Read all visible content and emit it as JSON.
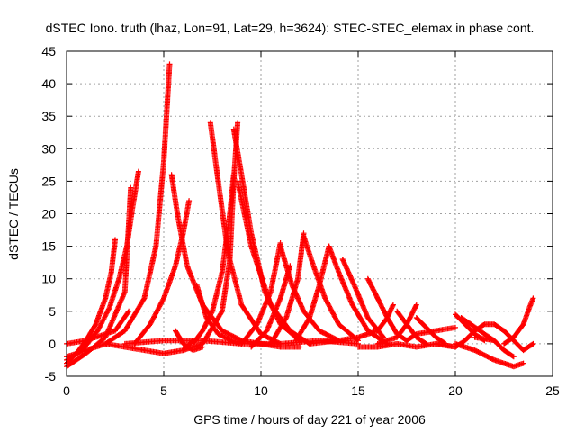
{
  "chart_data": {
    "type": "scatter",
    "title": "dSTEC Iono. truth (lhaz, Lon=91, Lat=29, h=3624): STEC-STEC_elemax in phase cont.",
    "xlabel": "GPS time / hours of day 221 of year 2006",
    "ylabel": "dSTEC  / TECUs",
    "xlim": [
      0,
      25
    ],
    "ylim": [
      -5,
      45
    ],
    "xticks": [
      0,
      5,
      10,
      15,
      20,
      25
    ],
    "yticks": [
      -5,
      0,
      5,
      10,
      15,
      20,
      25,
      30,
      35,
      40,
      45
    ],
    "grid": true,
    "legend": "none",
    "marker": "plus",
    "color": "#ff0000",
    "series": [
      {
        "x": [
          0.0,
          0.5,
          1.0,
          1.5,
          2.0,
          2.3,
          2.5
        ],
        "y": [
          -3.0,
          -1.5,
          0.5,
          3.0,
          7.0,
          11.0,
          16.0
        ]
      },
      {
        "x": [
          0.0,
          0.8,
          1.6,
          2.2,
          2.7,
          3.1,
          3.4,
          3.7
        ],
        "y": [
          -2.5,
          -1.0,
          2.0,
          5.5,
          10.0,
          15.0,
          21.0,
          26.5
        ]
      },
      {
        "x": [
          0.0,
          1.0,
          2.0,
          3.0,
          3.3
        ],
        "y": [
          -3.5,
          -1.5,
          1.0,
          8.0,
          24.0
        ]
      },
      {
        "x": [
          0.0,
          1.0,
          2.0,
          3.0,
          4.0,
          4.6,
          5.0,
          5.2,
          5.3
        ],
        "y": [
          -2.0,
          -1.0,
          0.0,
          2.0,
          7.0,
          15.0,
          28.0,
          38.0,
          43.0
        ]
      },
      {
        "x": [
          3.5,
          4.3,
          5.0,
          5.6,
          6.0,
          6.3
        ],
        "y": [
          0.0,
          3.0,
          7.0,
          12.0,
          17.0,
          22.0
        ]
      },
      {
        "x": [
          2.0,
          3.0,
          4.0,
          5.0,
          6.0,
          6.5
        ],
        "y": [
          0.0,
          -0.5,
          -1.0,
          -1.5,
          -1.0,
          0.5
        ]
      },
      {
        "x": [
          0.0,
          1.0,
          2.5,
          3.2
        ],
        "y": [
          0.0,
          0.5,
          2.0,
          5.0
        ]
      },
      {
        "x": [
          5.4,
          5.7,
          6.2,
          7.0,
          8.0,
          9.0,
          10.0,
          11.0,
          12.0
        ],
        "y": [
          26.0,
          20.0,
          12.0,
          6.0,
          2.0,
          0.5,
          0.0,
          -0.5,
          -0.5
        ]
      },
      {
        "x": [
          5.6,
          6.0,
          6.5,
          7.0
        ],
        "y": [
          2.0,
          0.0,
          -1.0,
          -0.5
        ]
      },
      {
        "x": [
          6.7,
          7.2,
          7.8,
          8.5,
          9.0
        ],
        "y": [
          9.0,
          4.0,
          1.5,
          0.5,
          0.0
        ]
      },
      {
        "x": [
          6.5,
          7.0,
          7.5,
          8.0,
          8.4,
          8.6
        ],
        "y": [
          0.0,
          2.0,
          5.0,
          11.0,
          20.0,
          26.0
        ]
      },
      {
        "x": [
          6.0,
          7.0,
          8.0,
          8.4,
          8.6,
          8.8
        ],
        "y": [
          -1.0,
          0.0,
          5.0,
          13.0,
          25.0,
          34.0
        ]
      },
      {
        "x": [
          7.4,
          7.8,
          8.3,
          9.0,
          10.0,
          11.0
        ],
        "y": [
          34.0,
          25.0,
          14.0,
          6.0,
          1.5,
          0.0
        ]
      },
      {
        "x": [
          8.6,
          9.0,
          9.5,
          10.2,
          11.0,
          12.0
        ],
        "y": [
          33.0,
          26.0,
          17.0,
          8.0,
          3.0,
          0.5
        ]
      },
      {
        "x": [
          8.8,
          9.5,
          10.5,
          11.5,
          12.5
        ],
        "y": [
          25.0,
          15.0,
          6.0,
          2.0,
          0.0
        ]
      },
      {
        "x": [
          9.0,
          9.8,
          10.5,
          11.0
        ],
        "y": [
          0.0,
          3.0,
          8.0,
          15.5
        ]
      },
      {
        "x": [
          9.5,
          10.3,
          11.0,
          11.5
        ],
        "y": [
          -0.5,
          2.0,
          7.0,
          12.0
        ]
      },
      {
        "x": [
          11.0,
          11.6,
          12.2,
          13.0,
          14.0
        ],
        "y": [
          15.0,
          9.0,
          5.0,
          2.0,
          0.5
        ]
      },
      {
        "x": [
          10.5,
          11.3,
          11.9,
          12.2
        ],
        "y": [
          0.0,
          4.0,
          10.0,
          17.0
        ]
      },
      {
        "x": [
          12.2,
          12.7,
          13.3,
          14.0,
          15.0
        ],
        "y": [
          16.5,
          12.0,
          7.0,
          3.0,
          0.5
        ]
      },
      {
        "x": [
          11.8,
          12.5,
          13.0,
          13.5
        ],
        "y": [
          0.5,
          4.0,
          9.0,
          15.0
        ]
      },
      {
        "x": [
          13.5,
          14.0,
          14.7,
          15.5,
          16.5
        ],
        "y": [
          15.0,
          11.0,
          6.0,
          2.0,
          0.0
        ]
      },
      {
        "x": [
          14.2,
          14.8,
          15.5,
          16.3
        ],
        "y": [
          13.0,
          9.0,
          4.0,
          1.0
        ]
      },
      {
        "x": [
          15.5,
          16.0,
          16.5,
          17.0,
          17.5
        ],
        "y": [
          10.0,
          7.0,
          4.0,
          1.5,
          0.5
        ]
      },
      {
        "x": [
          12.5,
          14.0,
          15.0,
          16.0,
          16.5,
          16.8
        ],
        "y": [
          0.0,
          0.5,
          1.0,
          2.0,
          4.0,
          6.0
        ]
      },
      {
        "x": [
          17.0,
          17.5,
          18.0,
          18.5
        ],
        "y": [
          5.0,
          3.0,
          1.0,
          0.0
        ]
      },
      {
        "x": [
          16.0,
          17.0,
          17.5,
          18.0
        ],
        "y": [
          0.0,
          1.0,
          3.0,
          6.0
        ]
      },
      {
        "x": [
          18.0,
          18.5,
          19.0,
          19.5
        ],
        "y": [
          4.0,
          2.5,
          1.0,
          0.0
        ]
      },
      {
        "x": [
          17.5,
          18.0,
          19.0,
          20.0
        ],
        "y": [
          0.5,
          1.5,
          2.0,
          2.5
        ]
      },
      {
        "x": [
          20.0,
          20.5,
          21.0,
          21.5
        ],
        "y": [
          4.5,
          3.0,
          1.5,
          0.5
        ]
      },
      {
        "x": [
          20.3,
          20.8,
          21.5,
          22.0
        ],
        "y": [
          4.0,
          3.0,
          1.5,
          0.5
        ]
      },
      {
        "x": [
          19.0,
          20.0,
          20.5,
          21.0,
          21.5,
          22.0,
          22.5,
          23.0,
          23.5,
          24.0
        ],
        "y": [
          0.0,
          -0.5,
          0.5,
          2.0,
          3.0,
          3.0,
          2.0,
          0.5,
          -1.0,
          0.0
        ]
      },
      {
        "x": [
          20.0,
          21.0,
          22.0,
          23.0,
          23.5
        ],
        "y": [
          0.0,
          -1.0,
          -2.5,
          -3.5,
          -3.0
        ]
      },
      {
        "x": [
          21.0,
          22.0,
          22.5,
          23.0
        ],
        "y": [
          1.0,
          0.5,
          -1.0,
          -2.0
        ]
      },
      {
        "x": [
          22.5,
          23.0,
          23.5,
          23.8,
          24.0
        ],
        "y": [
          0.0,
          1.0,
          3.0,
          5.5,
          7.0
        ]
      },
      {
        "x": [
          3.0,
          5.0,
          7.0,
          9.0,
          11.0,
          13.0,
          15.0
        ],
        "y": [
          0.0,
          0.5,
          0.5,
          0.0,
          0.0,
          0.5,
          0.0
        ]
      },
      {
        "x": [
          15.0,
          16.0,
          17.0,
          18.0,
          19.0,
          20.0
        ],
        "y": [
          -0.5,
          -0.5,
          0.0,
          -0.5,
          0.0,
          -0.5
        ]
      }
    ]
  }
}
